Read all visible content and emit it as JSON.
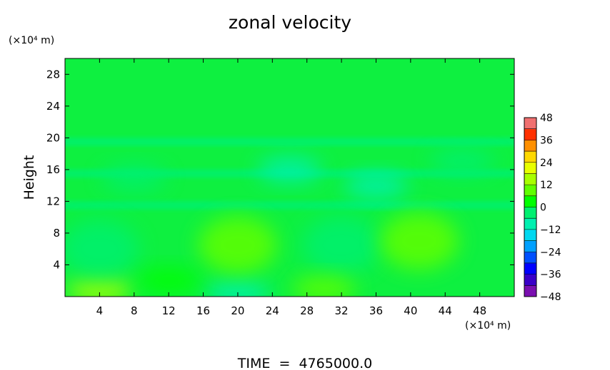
{
  "chart_data": {
    "type": "heatmap",
    "title": "zonal velocity",
    "ylabel": "Height",
    "yunit": "(×10⁴ m)",
    "xunit": "(×10⁴ m)",
    "footer": "TIME  =  4765000.0",
    "x_range": [
      0,
      52
    ],
    "y_range": [
      0,
      30
    ],
    "x_ticks": [
      4,
      8,
      12,
      16,
      20,
      24,
      28,
      32,
      36,
      40,
      44,
      48
    ],
    "y_ticks": [
      4,
      8,
      12,
      16,
      20,
      24,
      28
    ],
    "colorbar": {
      "range": [
        -48,
        48
      ],
      "ticks": [
        48,
        36,
        24,
        12,
        0,
        -12,
        -24,
        -36,
        -48
      ],
      "levels": [
        "#7a0fb0",
        "#3a00c8",
        "#0000ff",
        "#0050ff",
        "#00a0ff",
        "#00d8f0",
        "#00f0b0",
        "#00f070",
        "#00ff00",
        "#60ff00",
        "#a8ff00",
        "#e8ff00",
        "#ffd800",
        "#ff9000",
        "#ff3000",
        "#f07070"
      ]
    },
    "features": [
      {
        "x": 4,
        "y": 0.8,
        "value": 16
      },
      {
        "x": 20,
        "y": 0.4,
        "value": -8
      },
      {
        "x": 4,
        "y": 6,
        "value": -6
      },
      {
        "x": 20,
        "y": 6.5,
        "value": 9
      },
      {
        "x": 32,
        "y": 6.5,
        "value": -6
      },
      {
        "x": 41,
        "y": 7,
        "value": 8
      },
      {
        "x": 30,
        "y": 1,
        "value": 9
      },
      {
        "x": 12,
        "y": 2,
        "value": 5
      },
      {
        "x": 26,
        "y": 16,
        "value": -7
      },
      {
        "x": 36,
        "y": 14,
        "value": -8
      },
      {
        "x": 8,
        "y": 15,
        "value": -6
      },
      {
        "x": 46,
        "y": 17,
        "value": -6
      }
    ],
    "bands": [
      {
        "y": 11.5,
        "value": -6
      },
      {
        "y": 15.5,
        "value": -5
      },
      {
        "y": 19.5,
        "value": -3
      }
    ]
  }
}
